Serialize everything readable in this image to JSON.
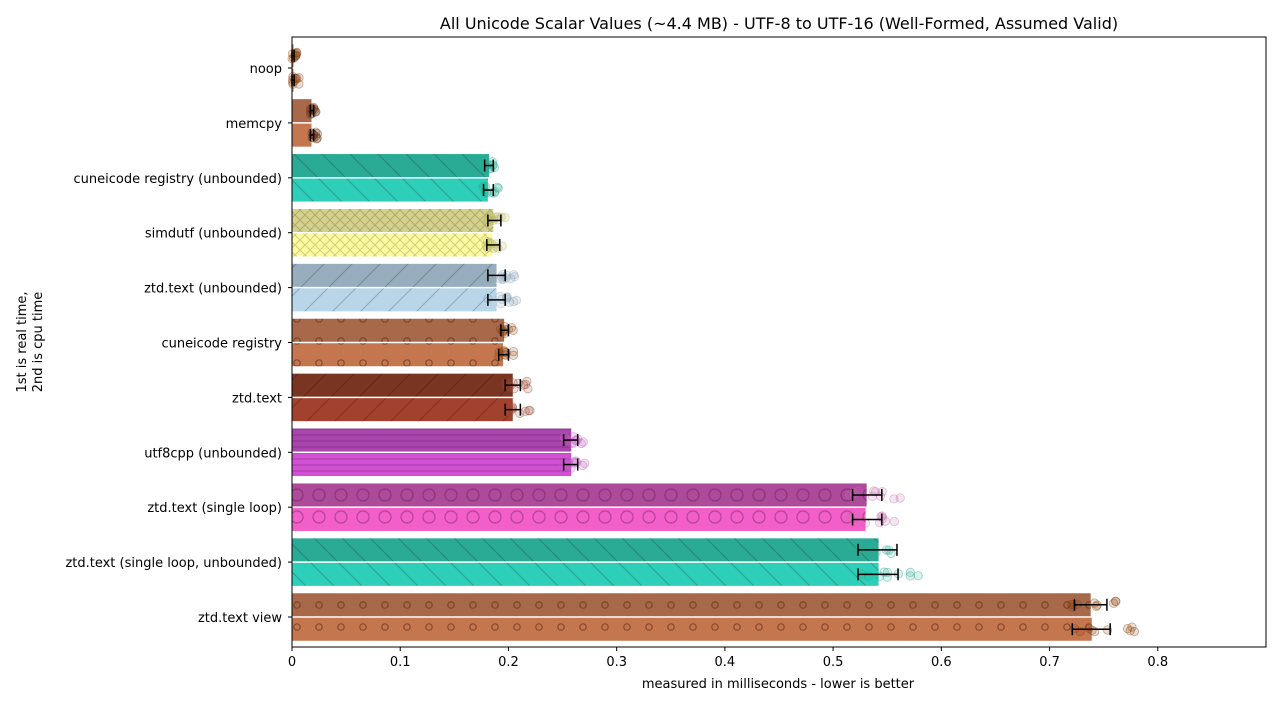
{
  "chart_data": {
    "type": "bar",
    "orientation": "horizontal",
    "title": "All Unicode Scalar Values (~4.4 MB) - UTF-8 to UTF-16 (Well-Formed, Assumed Valid)",
    "xlabel": "measured in milliseconds - lower is better",
    "ylabel_lines": [
      "1st is real time,",
      "2nd is cpu time"
    ],
    "xlim": [
      0,
      0.9
    ],
    "xticks": [
      0,
      0.1,
      0.2,
      0.3,
      0.4,
      0.5,
      0.6,
      0.7,
      0.8
    ],
    "grid": false,
    "legend": "none",
    "categories": [
      "noop",
      "memcpy",
      "cuneicode registry (unbounded)",
      "simdutf (unbounded)",
      "ztd.text (unbounded)",
      "cuneicode registry",
      "ztd.text",
      "utf8cpp (unbounded)",
      "ztd.text (single loop)",
      "ztd.text (single loop, unbounded)",
      "ztd.text view"
    ],
    "series": [
      {
        "measure": "real time",
        "values": [
          0.001,
          0.018,
          0.182,
          0.186,
          0.189,
          0.196,
          0.204,
          0.258,
          0.531,
          0.542,
          0.738
        ],
        "error_low": [
          0.0,
          0.017,
          0.178,
          0.181,
          0.181,
          0.193,
          0.197,
          0.251,
          0.518,
          0.523,
          0.723
        ],
        "error_high": [
          0.002,
          0.02,
          0.186,
          0.193,
          0.197,
          0.2,
          0.211,
          0.264,
          0.545,
          0.559,
          0.753
        ]
      },
      {
        "measure": "cpu time",
        "values": [
          0.001,
          0.018,
          0.181,
          0.185,
          0.189,
          0.195,
          0.204,
          0.258,
          0.53,
          0.542,
          0.739
        ],
        "error_low": [
          0.0,
          0.017,
          0.177,
          0.18,
          0.181,
          0.191,
          0.197,
          0.251,
          0.518,
          0.523,
          0.721
        ],
        "error_high": [
          0.002,
          0.02,
          0.186,
          0.192,
          0.197,
          0.2,
          0.211,
          0.264,
          0.545,
          0.56,
          0.756
        ]
      }
    ],
    "styles": [
      {
        "real": "#a8694a",
        "cpu": "#c4764f",
        "hatch": "none",
        "dot": "#8b4513"
      },
      {
        "real": "#a8694a",
        "cpu": "#c4764f",
        "hatch": "none",
        "dot": "#6b3010"
      },
      {
        "real": "#2aab95",
        "cpu": "#2ecfb8",
        "hatch": "backslash",
        "dot": "#2aab95"
      },
      {
        "real": "#d4d18a",
        "cpu": "#fdfb9e",
        "hatch": "cross",
        "dot": "#b8b45a"
      },
      {
        "real": "#98aebe",
        "cpu": "#b9d6e8",
        "hatch": "slash",
        "dot": "#8aa3b5"
      },
      {
        "real": "#a8694a",
        "cpu": "#c4764f",
        "hatch": "circle",
        "dot": "#8b4513"
      },
      {
        "real": "#7a3522",
        "cpu": "#a2412e",
        "hatch": "slash",
        "dot": "#9a4a35"
      },
      {
        "real": "#aa45ad",
        "cpu": "#d150d3",
        "hatch": "hline",
        "dot": "#c060c0"
      },
      {
        "real": "#ad4a9a",
        "cpu": "#f35fc9",
        "hatch": "bigcircle",
        "dot": "#c070b0"
      },
      {
        "real": "#2aab95",
        "cpu": "#2ecfb8",
        "hatch": "backslash",
        "dot": "#2aab95"
      },
      {
        "real": "#a8694a",
        "cpu": "#c4764f",
        "hatch": "circle",
        "dot": "#8b4513"
      }
    ]
  }
}
